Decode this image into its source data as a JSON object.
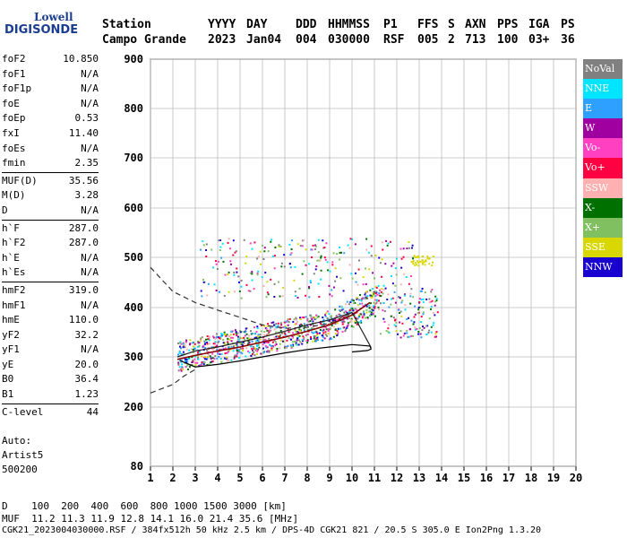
{
  "logo": {
    "top": "Lowell",
    "bottom": "DIGISONDE"
  },
  "header": {
    "labels": [
      "Station",
      "YYYY",
      "DAY",
      "DDD",
      "HHMMSS",
      "P1",
      "FFS",
      "S",
      "AXN",
      "PPS",
      "IGA",
      "PS"
    ],
    "station": "Campo Grande",
    "year": "2023",
    "day": "Jan04",
    "ddd": "004",
    "hhmmss": "030000",
    "p1": "RSF",
    "ffs": "005",
    "s": "2",
    "axn": "713",
    "pps": "100",
    "iga": "03+",
    "ps": "36"
  },
  "params": [
    {
      "k": "foF2",
      "v": "10.850"
    },
    {
      "k": "foF1",
      "v": "N/A"
    },
    {
      "k": "foF1p",
      "v": "N/A"
    },
    {
      "k": "foE",
      "v": "N/A"
    },
    {
      "k": "foEp",
      "v": "0.53"
    },
    {
      "k": "fxI",
      "v": "11.40"
    },
    {
      "k": "foEs",
      "v": "N/A"
    },
    {
      "k": "fmin",
      "v": "2.35"
    },
    {
      "k": "MUF(D)",
      "v": "35.56",
      "sep": true
    },
    {
      "k": "M(D)",
      "v": "3.28"
    },
    {
      "k": "D",
      "v": "N/A"
    },
    {
      "k": "h`F",
      "v": "287.0",
      "sep": true
    },
    {
      "k": "h`F2",
      "v": "287.0"
    },
    {
      "k": "h`E",
      "v": "N/A"
    },
    {
      "k": "h`Es",
      "v": "N/A"
    },
    {
      "k": "hmF2",
      "v": "319.0",
      "sep": true
    },
    {
      "k": "hmF1",
      "v": "N/A"
    },
    {
      "k": "hmE",
      "v": "110.0"
    },
    {
      "k": "yF2",
      "v": "32.2"
    },
    {
      "k": "yF1",
      "v": "N/A"
    },
    {
      "k": "yE",
      "v": "20.0"
    },
    {
      "k": "B0",
      "v": "36.4"
    },
    {
      "k": "B1",
      "v": "1.23"
    },
    {
      "k": "C-level",
      "v": "44",
      "sep": true
    }
  ],
  "auto": {
    "l1": "Auto:",
    "l2": "Artist5",
    "l3": "500200"
  },
  "legend": [
    {
      "label": "NoVal",
      "color": "#808080"
    },
    {
      "label": "NNE",
      "color": "#00e5ff"
    },
    {
      "label": "E",
      "color": "#2ea0ff"
    },
    {
      "label": "W",
      "color": "#a000a0"
    },
    {
      "label": "Vo-",
      "color": "#ff40c0"
    },
    {
      "label": "Vo+",
      "color": "#ff0040"
    },
    {
      "label": "SSW",
      "color": "#ffb0b0"
    },
    {
      "label": "X-",
      "color": "#007000"
    },
    {
      "label": "X+",
      "color": "#80c060"
    },
    {
      "label": "SSE",
      "color": "#d8d800"
    },
    {
      "label": "NNW",
      "color": "#1800d0"
    }
  ],
  "footer": {
    "line1": "D    100  200  400  600  800 1000 1500 3000 [km]",
    "line2": "MUF  11.2 11.3 11.9 12.8 14.1 16.0 21.4 35.6 [MHz]",
    "line3": "CGK21_2023004030000.RSF / 384fx512h 50 kHz 2.5 km / DPS-4D CGK21 821 / 20.5 S 305.0 E Ion2Png 1.3.20"
  },
  "chart_data": {
    "type": "scatter",
    "xlim": [
      1,
      20
    ],
    "ylim": [
      80,
      900
    ],
    "xticks": [
      1,
      2,
      3,
      4,
      5,
      6,
      7,
      8,
      9,
      10,
      11,
      12,
      13,
      14,
      15,
      16,
      17,
      18,
      19,
      20
    ],
    "yticks": [
      80,
      200,
      300,
      400,
      500,
      600,
      700,
      800,
      900
    ],
    "grid": true,
    "trace_fit": [
      [
        2.2,
        295
      ],
      [
        3,
        303
      ],
      [
        4,
        312
      ],
      [
        5,
        320
      ],
      [
        6,
        330
      ],
      [
        7,
        340
      ],
      [
        8,
        352
      ],
      [
        9,
        365
      ],
      [
        10,
        385
      ],
      [
        10.8,
        410
      ]
    ],
    "profile": [
      [
        2.2,
        300
      ],
      [
        3,
        312
      ],
      [
        4,
        320
      ],
      [
        5,
        330
      ],
      [
        6,
        340
      ],
      [
        7,
        352
      ],
      [
        8,
        365
      ],
      [
        9,
        375
      ],
      [
        10,
        390
      ],
      [
        10.85,
        319
      ]
    ],
    "profile_solid": [
      [
        2.3,
        293
      ],
      [
        3,
        280
      ],
      [
        4,
        285
      ],
      [
        5,
        292
      ],
      [
        6,
        300
      ],
      [
        7,
        308
      ],
      [
        8,
        315
      ],
      [
        9,
        320
      ],
      [
        10,
        325
      ],
      [
        10.8,
        322
      ],
      [
        10.85,
        316
      ],
      [
        10.7,
        313
      ],
      [
        10,
        310
      ]
    ],
    "dashed_model": [
      [
        1,
        480
      ],
      [
        2,
        432
      ],
      [
        3,
        410
      ],
      [
        4,
        395
      ],
      [
        5,
        380
      ],
      [
        6,
        365
      ],
      [
        7,
        358
      ],
      [
        8,
        360
      ],
      [
        9,
        368
      ],
      [
        10,
        390
      ]
    ],
    "dashed_lower": [
      [
        1,
        228
      ],
      [
        2,
        245
      ],
      [
        2.5,
        262
      ],
      [
        3,
        275
      ]
    ]
  }
}
